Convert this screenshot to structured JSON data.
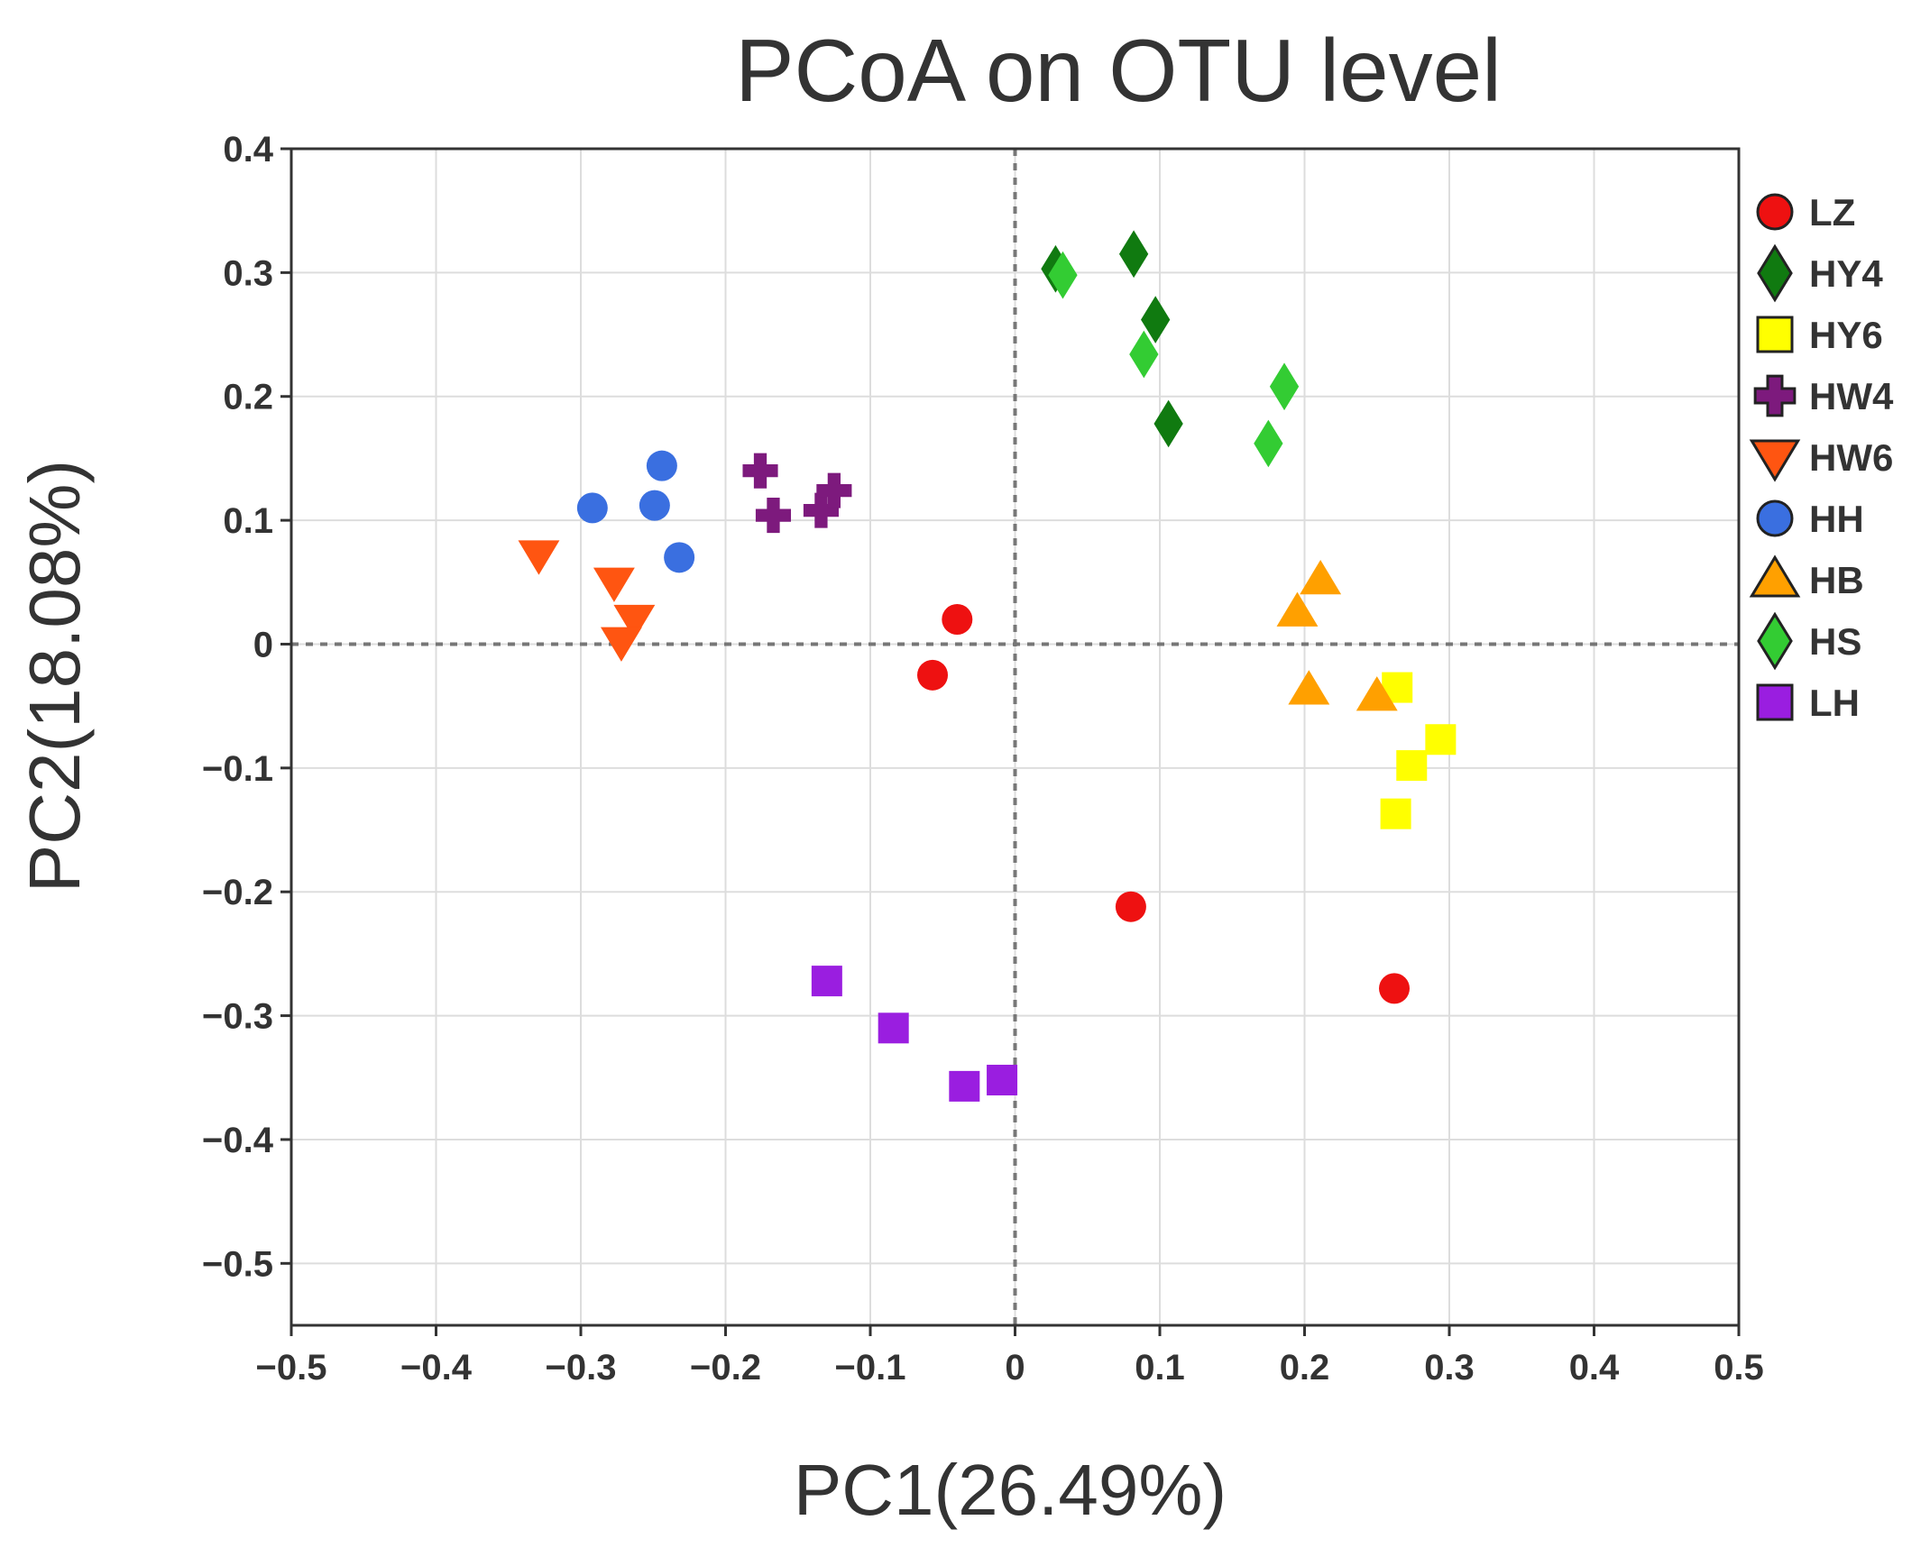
{
  "chart_data": {
    "type": "scatter",
    "title": "PCoA on OTU level",
    "xlabel": "PC1(26.49%)",
    "ylabel": "PC2(18.08%)",
    "xlim": [
      -0.5,
      0.5
    ],
    "ylim": [
      -0.55,
      0.4
    ],
    "xticks": [
      -0.5,
      -0.4,
      -0.3,
      -0.2,
      -0.1,
      0,
      0.1,
      0.2,
      0.3,
      0.4,
      0.5
    ],
    "xtick_labels": [
      "−0.5",
      "−0.4",
      "−0.3",
      "−0.2",
      "−0.1",
      "0",
      "0.1",
      "0.2",
      "0.3",
      "0.4",
      "0.5"
    ],
    "yticks": [
      0.4,
      0.3,
      0.2,
      0.1,
      0,
      -0.1,
      -0.2,
      -0.3,
      -0.4,
      -0.5
    ],
    "ytick_labels": [
      "0.4",
      "0.3",
      "0.2",
      "0.1",
      "0",
      "−0.1",
      "−0.2",
      "−0.3",
      "−0.4",
      "−0.5"
    ],
    "grid": true,
    "reference_lines": {
      "x": 0,
      "y": 0,
      "style": "dashed"
    },
    "legend_position": "right",
    "series": [
      {
        "name": "LZ",
        "marker": "circle",
        "color": "#ee1111",
        "points": [
          [
            -0.04,
            0.02
          ],
          [
            -0.057,
            -0.025
          ],
          [
            0.08,
            -0.212
          ],
          [
            0.262,
            -0.278
          ]
        ]
      },
      {
        "name": "HY4",
        "marker": "diamond",
        "color": "#107a10",
        "points": [
          [
            0.028,
            0.303
          ],
          [
            0.082,
            0.315
          ],
          [
            0.097,
            0.262
          ],
          [
            0.106,
            0.178
          ]
        ]
      },
      {
        "name": "HY6",
        "marker": "square",
        "color": "#ffff00",
        "points": [
          [
            0.264,
            -0.035
          ],
          [
            0.294,
            -0.077
          ],
          [
            0.274,
            -0.098
          ],
          [
            0.263,
            -0.137
          ]
        ]
      },
      {
        "name": "HW4",
        "marker": "plus",
        "color": "#7d1a7d",
        "points": [
          [
            -0.176,
            0.14
          ],
          [
            -0.167,
            0.104
          ],
          [
            -0.134,
            0.108
          ],
          [
            -0.125,
            0.124
          ]
        ]
      },
      {
        "name": "HW6",
        "marker": "triangle-down",
        "color": "#ff5511",
        "points": [
          [
            -0.329,
            0.072
          ],
          [
            -0.277,
            0.05
          ],
          [
            -0.263,
            0.02
          ],
          [
            -0.272,
            0.002
          ]
        ]
      },
      {
        "name": "HH",
        "marker": "circle",
        "color": "#3a6fe0",
        "points": [
          [
            -0.292,
            0.11
          ],
          [
            -0.249,
            0.112
          ],
          [
            -0.244,
            0.144
          ],
          [
            -0.232,
            0.07
          ]
        ]
      },
      {
        "name": "HB",
        "marker": "triangle-up",
        "color": "#ffa000",
        "points": [
          [
            0.211,
            0.052
          ],
          [
            0.195,
            0.026
          ],
          [
            0.203,
            -0.037
          ],
          [
            0.25,
            -0.042
          ]
        ]
      },
      {
        "name": "HS",
        "marker": "diamond",
        "color": "#33cc33",
        "points": [
          [
            0.033,
            0.298
          ],
          [
            0.089,
            0.234
          ],
          [
            0.186,
            0.208
          ],
          [
            0.175,
            0.162
          ]
        ]
      },
      {
        "name": "LH",
        "marker": "square",
        "color": "#9a1ee0",
        "points": [
          [
            -0.13,
            -0.272
          ],
          [
            -0.084,
            -0.31
          ],
          [
            -0.035,
            -0.357
          ],
          [
            -0.009,
            -0.352
          ]
        ]
      }
    ]
  }
}
